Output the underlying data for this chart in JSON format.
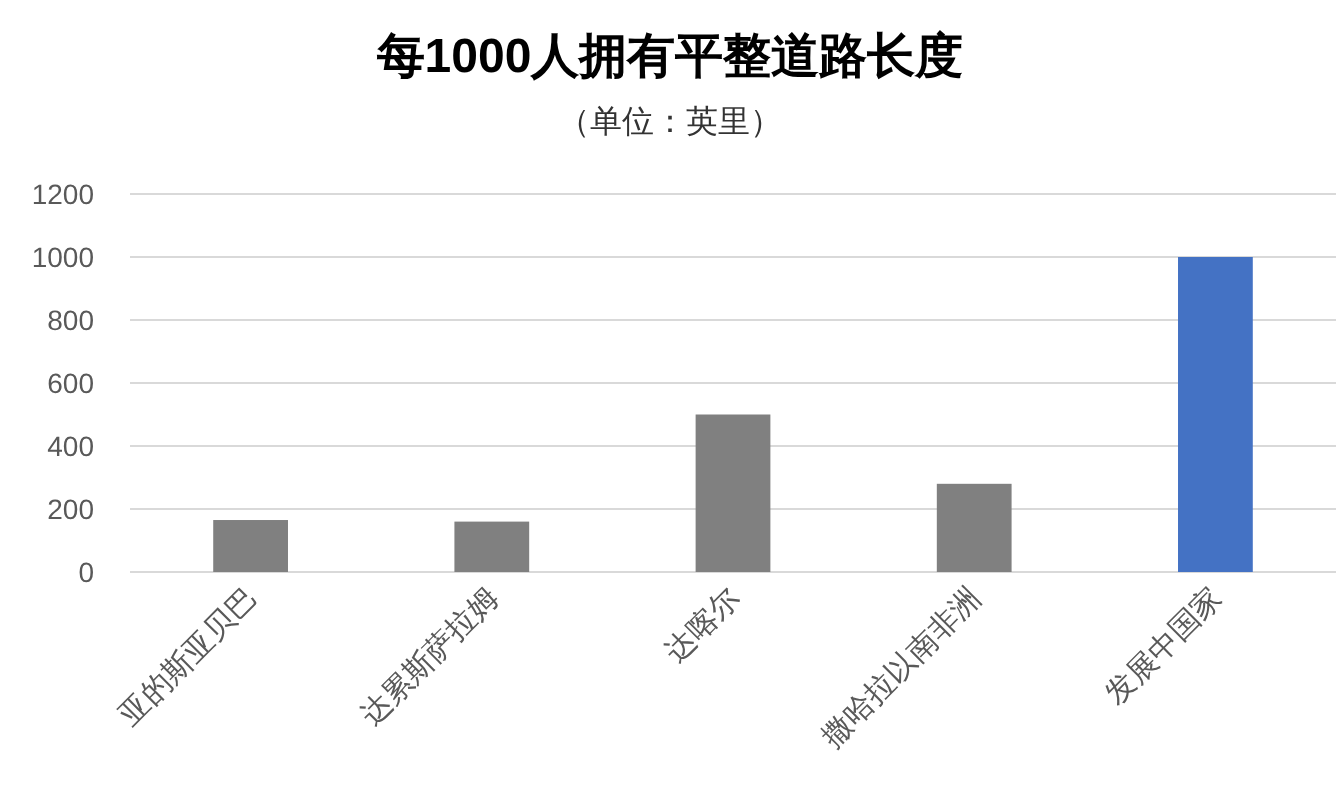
{
  "chart_data": {
    "type": "bar",
    "title": "每1000人拥有平整道路长度",
    "subtitle": "（单位：英里）",
    "categories": [
      "亚的斯亚贝巴",
      "达累斯萨拉姆",
      "达喀尔",
      "撒哈拉以南非洲",
      "发展中国家"
    ],
    "values": [
      165,
      160,
      500,
      280,
      1000
    ],
    "colors": [
      "#808080",
      "#808080",
      "#808080",
      "#808080",
      "#4472c4"
    ],
    "ylim": [
      0,
      1200
    ],
    "yticks": [
      0,
      200,
      400,
      600,
      800,
      1000,
      1200
    ],
    "grid": "y"
  }
}
